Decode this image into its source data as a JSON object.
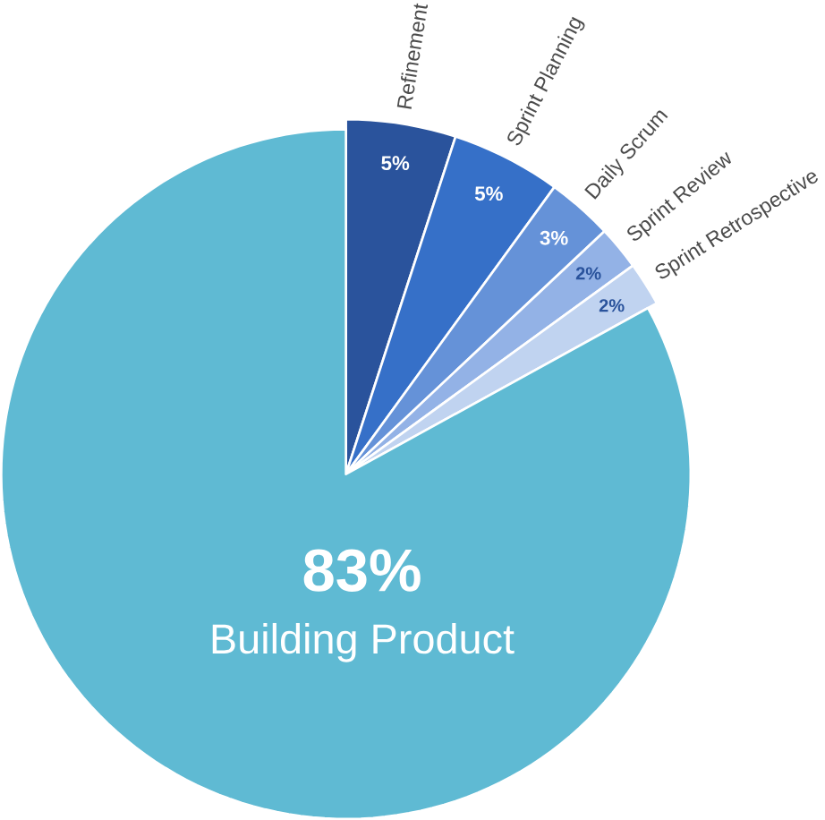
{
  "chart_data": {
    "type": "pie",
    "categories": [
      "Refinement",
      "Sprint Planning",
      "Daily Scrum",
      "Sprint Review",
      "Sprint Retrospective",
      "Building Product"
    ],
    "values": [
      5,
      5,
      3,
      2,
      2,
      83
    ],
    "value_labels": [
      "5%",
      "5%",
      "3%",
      "2%",
      "2%",
      "83%"
    ],
    "colors": [
      "#2a539c",
      "#3670c8",
      "#6592d8",
      "#93b2e6",
      "#c0d3f0",
      "#5fbad3"
    ]
  }
}
